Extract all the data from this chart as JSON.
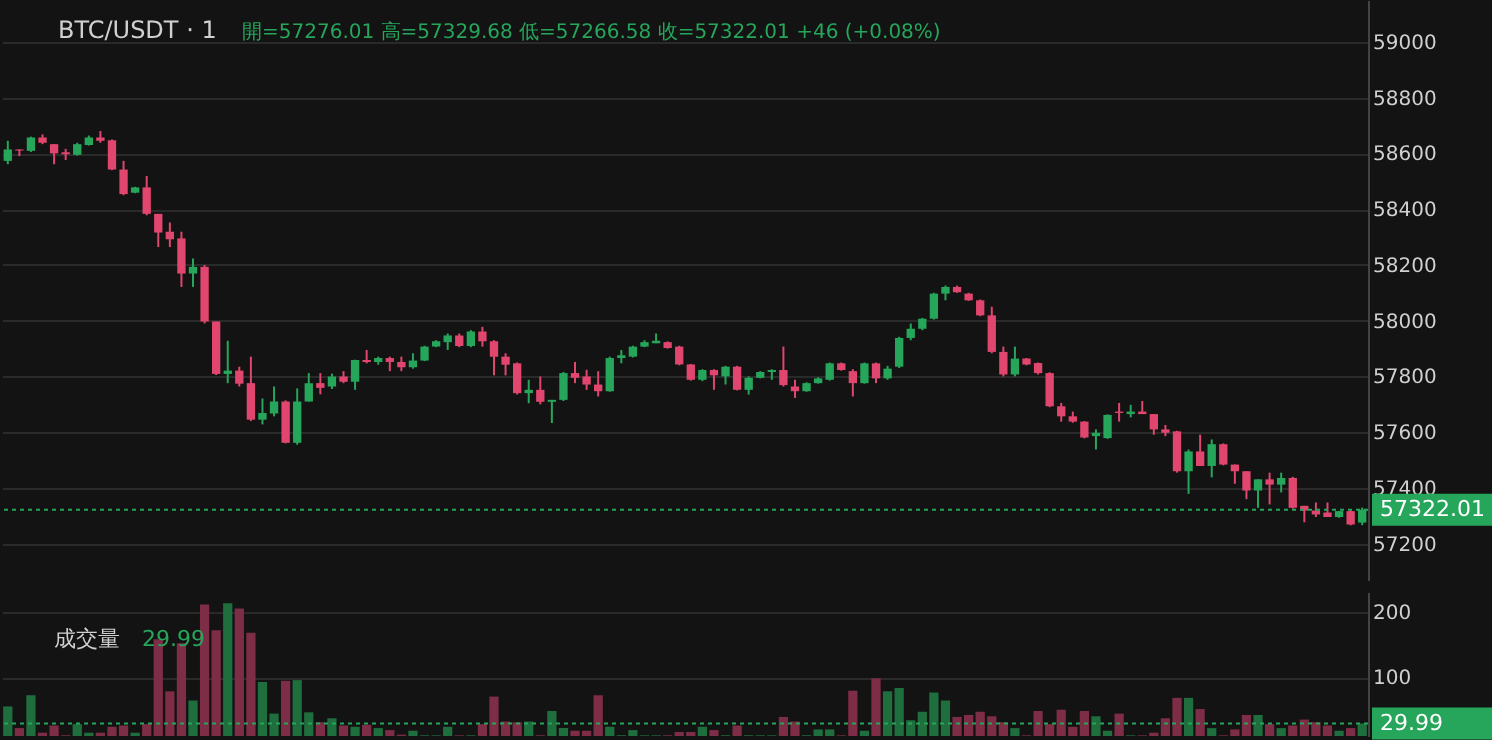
{
  "chart_data": [
    {
      "type": "candlestick",
      "title": "BTC/USDT · 1",
      "annotations": [
        "開=57276.01 高=57329.68 低=57266.58 收=57322.01 +46 (+0.08%)"
      ],
      "categories": [
        null,
        null,
        null,
        null,
        null,
        null,
        null,
        null,
        null,
        null,
        null,
        null,
        null,
        null,
        null,
        null,
        null,
        null,
        null,
        null,
        null,
        null,
        null,
        null,
        null,
        null,
        null,
        null,
        null,
        null,
        null,
        null,
        null,
        null,
        null,
        null,
        null,
        null,
        null,
        null,
        null,
        null,
        null,
        null,
        null,
        null,
        null,
        null,
        null,
        null,
        null,
        null,
        null,
        null,
        null,
        null,
        null,
        null,
        null,
        null,
        null,
        null,
        null,
        null,
        null,
        null,
        null,
        null,
        null,
        null,
        null,
        null,
        null,
        null,
        null,
        null,
        null,
        null,
        null,
        null,
        null,
        null,
        null,
        null,
        null,
        null,
        null,
        null,
        null,
        null,
        null,
        null,
        null,
        null,
        null,
        null,
        null,
        null,
        null,
        null,
        null,
        null,
        null,
        null,
        null,
        null,
        null,
        null,
        null,
        null,
        null,
        null,
        null,
        null,
        null,
        null,
        null,
        null
      ],
      "ohlc": [
        [
          58573,
          58645,
          58561,
          58614
        ],
        [
          58614,
          58614,
          58590,
          58610
        ],
        [
          58609,
          58660,
          58605,
          58657
        ],
        [
          58657,
          58668,
          58633,
          58638
        ],
        [
          58633,
          58633,
          58561,
          58600
        ],
        [
          58604,
          58616,
          58576,
          58597
        ],
        [
          58595,
          58638,
          58592,
          58633
        ],
        [
          58630,
          58664,
          58628,
          58657
        ],
        [
          58657,
          58680,
          58638,
          58645
        ],
        [
          58647,
          58650,
          58540,
          58542
        ],
        [
          58542,
          58573,
          58450,
          58454
        ],
        [
          58459,
          58480,
          58457,
          58478
        ],
        [
          58478,
          58519,
          58378,
          58383
        ],
        [
          58383,
          58383,
          58264,
          58316
        ],
        [
          58319,
          58352,
          58264,
          58292
        ],
        [
          58295,
          58319,
          58121,
          58169
        ],
        [
          58169,
          58223,
          58121,
          58193
        ],
        [
          58193,
          58200,
          57990,
          57997
        ],
        [
          57997,
          57997,
          57805,
          57809
        ],
        [
          57809,
          57928,
          57776,
          57821
        ],
        [
          57821,
          57835,
          57764,
          57774
        ],
        [
          57776,
          57871,
          57640,
          57645
        ],
        [
          57645,
          57721,
          57628,
          57669
        ],
        [
          57667,
          57764,
          57657,
          57710
        ],
        [
          57710,
          57714,
          57560,
          57562
        ],
        [
          57562,
          57757,
          57555,
          57710
        ],
        [
          57710,
          57812,
          57710,
          57776
        ],
        [
          57776,
          57812,
          57736,
          57759
        ],
        [
          57764,
          57810,
          57755,
          57800
        ],
        [
          57800,
          57819,
          57776,
          57781
        ],
        [
          57781,
          57860,
          57752,
          57859
        ],
        [
          57859,
          57895,
          57847,
          57852
        ],
        [
          57852,
          57871,
          57842,
          57866
        ],
        [
          57866,
          57871,
          57819,
          57852
        ],
        [
          57852,
          57871,
          57819,
          57833
        ],
        [
          57833,
          57883,
          57828,
          57857
        ],
        [
          57857,
          57910,
          57855,
          57907
        ],
        [
          57907,
          57930,
          57905,
          57926
        ],
        [
          57923,
          57954,
          57895,
          57947
        ],
        [
          57947,
          57954,
          57905,
          57909
        ],
        [
          57909,
          57966,
          57905,
          57961
        ],
        [
          57961,
          57978,
          57907,
          57926
        ],
        [
          57926,
          57930,
          57804,
          57871
        ],
        [
          57871,
          57883,
          57804,
          57842
        ],
        [
          57847,
          57850,
          57735,
          57740
        ],
        [
          57740,
          57788,
          57704,
          57752
        ],
        [
          57752,
          57800,
          57700,
          57709
        ],
        [
          57709,
          57716,
          57633,
          57716
        ],
        [
          57716,
          57816,
          57712,
          57812
        ],
        [
          57812,
          57852,
          57776,
          57795
        ],
        [
          57800,
          57824,
          57752,
          57771
        ],
        [
          57771,
          57819,
          57728,
          57747
        ],
        [
          57747,
          57871,
          57745,
          57866
        ],
        [
          57866,
          57895,
          57847,
          57876
        ],
        [
          57871,
          57910,
          57868,
          57907
        ],
        [
          57907,
          57930,
          57905,
          57923
        ],
        [
          57919,
          57954,
          57919,
          57928
        ],
        [
          57923,
          57926,
          57900,
          57902
        ],
        [
          57907,
          57910,
          57840,
          57843
        ],
        [
          57843,
          57845,
          57785,
          57788
        ],
        [
          57788,
          57826,
          57783,
          57823
        ],
        [
          57823,
          57826,
          57752,
          57804
        ],
        [
          57800,
          57838,
          57771,
          57835
        ],
        [
          57835,
          57838,
          57750,
          57752
        ],
        [
          57752,
          57800,
          57735,
          57795
        ],
        [
          57795,
          57819,
          57793,
          57816
        ],
        [
          57816,
          57826,
          57788,
          57823
        ],
        [
          57823,
          57907,
          57764,
          57769
        ],
        [
          57764,
          57788,
          57723,
          57747
        ],
        [
          57747,
          57779,
          57745,
          57776
        ],
        [
          57776,
          57797,
          57774,
          57793
        ],
        [
          57788,
          57850,
          57785,
          57847
        ],
        [
          57847,
          57850,
          57821,
          57823
        ],
        [
          57819,
          57826,
          57728,
          57776
        ],
        [
          57776,
          57850,
          57774,
          57847
        ],
        [
          57847,
          57850,
          57776,
          57793
        ],
        [
          57793,
          57838,
          57788,
          57828
        ],
        [
          57835,
          57942,
          57830,
          57938
        ],
        [
          57938,
          57990,
          57930,
          57971
        ],
        [
          57971,
          58010,
          57966,
          58007
        ],
        [
          58007,
          58100,
          58004,
          58097
        ],
        [
          58097,
          58126,
          58073,
          58121
        ],
        [
          58121,
          58126,
          58100,
          58102
        ],
        [
          58097,
          58100,
          58071,
          58073
        ],
        [
          58073,
          58076,
          58016,
          58019
        ],
        [
          58019,
          58050,
          57883,
          57888
        ],
        [
          57888,
          57907,
          57800,
          57807
        ],
        [
          57807,
          57907,
          57800,
          57864
        ],
        [
          57864,
          57866,
          57840,
          57843
        ],
        [
          57848,
          57850,
          57807,
          57812
        ],
        [
          57812,
          57815,
          57690,
          57693
        ],
        [
          57693,
          57705,
          57638,
          57657
        ],
        [
          57657,
          57674,
          57634,
          57638
        ],
        [
          57638,
          57640,
          57578,
          57581
        ],
        [
          57586,
          57610,
          57538,
          57598
        ],
        [
          57579,
          57664,
          57576,
          57662
        ],
        [
          57674,
          57705,
          57638,
          57669
        ],
        [
          57665,
          57698,
          57653,
          57674
        ],
        [
          57674,
          57712,
          57665,
          57665
        ],
        [
          57665,
          57665,
          57591,
          57610
        ],
        [
          57610,
          57626,
          57586,
          57598
        ],
        [
          57603,
          57605,
          57455,
          57460
        ],
        [
          57460,
          57538,
          57379,
          57531
        ],
        [
          57531,
          57591,
          57479,
          57479
        ],
        [
          57479,
          57574,
          57438,
          57557
        ],
        [
          57557,
          57560,
          57481,
          57484
        ],
        [
          57484,
          57484,
          57415,
          57460
        ],
        [
          57460,
          57460,
          57360,
          57391
        ],
        [
          57391,
          57431,
          57329,
          57431
        ],
        [
          57431,
          57455,
          57341,
          57412
        ],
        [
          57412,
          57455,
          57384,
          57436
        ],
        [
          57436,
          57440,
          57326,
          57329
        ],
        [
          57336,
          57336,
          57277,
          57319
        ],
        [
          57319,
          57348,
          57296,
          57305
        ],
        [
          57312,
          57348,
          57296,
          57296
        ],
        [
          57296,
          57317,
          57293,
          57317
        ],
        [
          57317,
          57320,
          57266,
          57269
        ],
        [
          57276.01,
          57329.68,
          57266.58,
          57322.01
        ]
      ],
      "colors": [
        "#26a65b",
        "#e0466e",
        "#26a65b",
        "#e0466e",
        "#e0466e",
        "#e0466e",
        "#26a65b",
        "#26a65b",
        "#e0466e",
        "#e0466e",
        "#e0466e",
        "#26a65b",
        "#e0466e",
        "#e0466e",
        "#e0466e",
        "#e0466e",
        "#26a65b",
        "#e0466e",
        "#e0466e",
        "#26a65b",
        "#e0466e",
        "#e0466e",
        "#26a65b",
        "#26a65b",
        "#e0466e",
        "#26a65b",
        "#26a65b",
        "#e0466e",
        "#26a65b",
        "#e0466e",
        "#26a65b",
        "#e0466e",
        "#26a65b",
        "#e0466e",
        "#e0466e",
        "#26a65b",
        "#26a65b",
        "#26a65b",
        "#26a65b",
        "#e0466e",
        "#26a65b",
        "#e0466e",
        "#e0466e",
        "#e0466e",
        "#e0466e",
        "#26a65b",
        "#e0466e",
        "#26a65b",
        "#26a65b",
        "#e0466e",
        "#e0466e",
        "#e0466e",
        "#26a65b",
        "#26a65b",
        "#26a65b",
        "#26a65b",
        "#26a65b",
        "#e0466e",
        "#e0466e",
        "#e0466e",
        "#26a65b",
        "#e0466e",
        "#26a65b",
        "#e0466e",
        "#26a65b",
        "#26a65b",
        "#26a65b",
        "#e0466e",
        "#e0466e",
        "#26a65b",
        "#26a65b",
        "#26a65b",
        "#e0466e",
        "#e0466e",
        "#26a65b",
        "#e0466e",
        "#26a65b",
        "#26a65b",
        "#26a65b",
        "#26a65b",
        "#26a65b",
        "#26a65b",
        "#e0466e",
        "#e0466e",
        "#e0466e",
        "#e0466e",
        "#e0466e",
        "#26a65b",
        "#e0466e",
        "#e0466e",
        "#e0466e",
        "#e0466e",
        "#e0466e",
        "#e0466e",
        "#26a65b",
        "#26a65b",
        "#e0466e",
        "#26a65b",
        "#e0466e",
        "#e0466e",
        "#e0466e",
        "#e0466e",
        "#26a65b",
        "#e0466e",
        "#26a65b",
        "#e0466e",
        "#e0466e",
        "#e0466e",
        "#26a65b",
        "#e0466e",
        "#26a65b",
        "#e0466e",
        "#e0466e",
        "#e0466e",
        "#e0466e",
        "#26a65b",
        "#e0466e",
        "#26a65b"
      ],
      "ylim": [
        57070,
        59150
      ],
      "yticks": [
        57200,
        57400,
        57600,
        57800,
        58000,
        58200,
        58400,
        58600,
        58800,
        59000
      ],
      "grid": "y",
      "ref_lines": [
        {
          "axis": "y",
          "value": 57322.01,
          "label": "57322.01",
          "color": "#26a65b",
          "line_style": "dotted"
        }
      ]
    },
    {
      "type": "bar",
      "title": "成交量",
      "annotations": [
        "29.99"
      ],
      "categories": [
        null,
        null,
        null,
        null,
        null,
        null,
        null,
        null,
        null,
        null,
        null,
        null,
        null,
        null,
        null,
        null,
        null,
        null,
        null,
        null,
        null,
        null,
        null,
        null,
        null,
        null,
        null,
        null,
        null,
        null,
        null,
        null,
        null,
        null,
        null,
        null,
        null,
        null,
        null,
        null,
        null,
        null,
        null,
        null,
        null,
        null,
        null,
        null,
        null,
        null,
        null,
        null,
        null,
        null,
        null,
        null,
        null,
        null,
        null,
        null,
        null,
        null,
        null,
        null,
        null,
        null,
        null,
        null,
        null,
        null,
        null,
        null,
        null,
        null,
        null,
        null,
        null,
        null,
        null,
        null,
        null,
        null,
        null,
        null,
        null,
        null,
        null,
        null,
        null,
        null,
        null,
        null,
        null,
        null,
        null,
        null,
        null,
        null,
        null,
        null,
        null,
        null,
        null,
        null,
        null,
        null,
        null,
        null,
        null,
        null,
        null,
        null,
        null,
        null,
        null,
        null,
        null,
        null
      ],
      "values": [
        56,
        23,
        73,
        16,
        27,
        12,
        29,
        16,
        16,
        25,
        27,
        16,
        29,
        158,
        79,
        152,
        65,
        211,
        172,
        213,
        205,
        168,
        93,
        45,
        95,
        96,
        47,
        32,
        38,
        27,
        25,
        28,
        23,
        20,
        13,
        19,
        12,
        12,
        25,
        12,
        12,
        29,
        71,
        33,
        32,
        33,
        12,
        49,
        23,
        19,
        19,
        73,
        25,
        12,
        20,
        12,
        12,
        12,
        17,
        17,
        25,
        20,
        12,
        27,
        12,
        12,
        12,
        40,
        33,
        12,
        21,
        21,
        12,
        80,
        19,
        99,
        79,
        84,
        35,
        48,
        77,
        65,
        40,
        43,
        48,
        41,
        32,
        23,
        12,
        49,
        29,
        51,
        25,
        49,
        41,
        19,
        45,
        12,
        12,
        16,
        38,
        69,
        69,
        52,
        23,
        12,
        21,
        43,
        43,
        29,
        23,
        27,
        36,
        32,
        27,
        19,
        23,
        29.99
      ],
      "colors": [
        "#1f6e3d",
        "#7d2d45",
        "#1f6e3d",
        "#7d2d45",
        "#7d2d45",
        "#7d2d45",
        "#1f6e3d",
        "#1f6e3d",
        "#7d2d45",
        "#7d2d45",
        "#7d2d45",
        "#1f6e3d",
        "#7d2d45",
        "#7d2d45",
        "#7d2d45",
        "#7d2d45",
        "#1f6e3d",
        "#7d2d45",
        "#7d2d45",
        "#1f6e3d",
        "#7d2d45",
        "#7d2d45",
        "#1f6e3d",
        "#1f6e3d",
        "#7d2d45",
        "#1f6e3d",
        "#1f6e3d",
        "#7d2d45",
        "#1f6e3d",
        "#7d2d45",
        "#1f6e3d",
        "#7d2d45",
        "#1f6e3d",
        "#7d2d45",
        "#7d2d45",
        "#1f6e3d",
        "#1f6e3d",
        "#1f6e3d",
        "#1f6e3d",
        "#7d2d45",
        "#1f6e3d",
        "#7d2d45",
        "#7d2d45",
        "#7d2d45",
        "#7d2d45",
        "#1f6e3d",
        "#7d2d45",
        "#1f6e3d",
        "#1f6e3d",
        "#7d2d45",
        "#7d2d45",
        "#7d2d45",
        "#1f6e3d",
        "#1f6e3d",
        "#1f6e3d",
        "#1f6e3d",
        "#1f6e3d",
        "#7d2d45",
        "#7d2d45",
        "#7d2d45",
        "#1f6e3d",
        "#7d2d45",
        "#1f6e3d",
        "#7d2d45",
        "#1f6e3d",
        "#1f6e3d",
        "#1f6e3d",
        "#7d2d45",
        "#7d2d45",
        "#1f6e3d",
        "#1f6e3d",
        "#1f6e3d",
        "#7d2d45",
        "#7d2d45",
        "#1f6e3d",
        "#7d2d45",
        "#1f6e3d",
        "#1f6e3d",
        "#1f6e3d",
        "#1f6e3d",
        "#1f6e3d",
        "#1f6e3d",
        "#7d2d45",
        "#7d2d45",
        "#7d2d45",
        "#7d2d45",
        "#7d2d45",
        "#1f6e3d",
        "#7d2d45",
        "#7d2d45",
        "#7d2d45",
        "#7d2d45",
        "#7d2d45",
        "#7d2d45",
        "#1f6e3d",
        "#1f6e3d",
        "#7d2d45",
        "#1f6e3d",
        "#7d2d45",
        "#7d2d45",
        "#7d2d45",
        "#7d2d45",
        "#1f6e3d",
        "#7d2d45",
        "#1f6e3d",
        "#7d2d45",
        "#7d2d45",
        "#7d2d45",
        "#1f6e3d",
        "#7d2d45",
        "#1f6e3d",
        "#7d2d45",
        "#7d2d45",
        "#7d2d45",
        "#7d2d45",
        "#1f6e3d",
        "#7d2d45",
        "#1f6e3d"
      ],
      "ylim": [
        11,
        230
      ],
      "yticks": [
        100,
        200
      ],
      "grid": "y",
      "ref_lines": [
        {
          "axis": "y",
          "value": 29.99,
          "label": "29.99",
          "color": "#26a65b",
          "line_style": "dotted"
        }
      ]
    }
  ]
}
